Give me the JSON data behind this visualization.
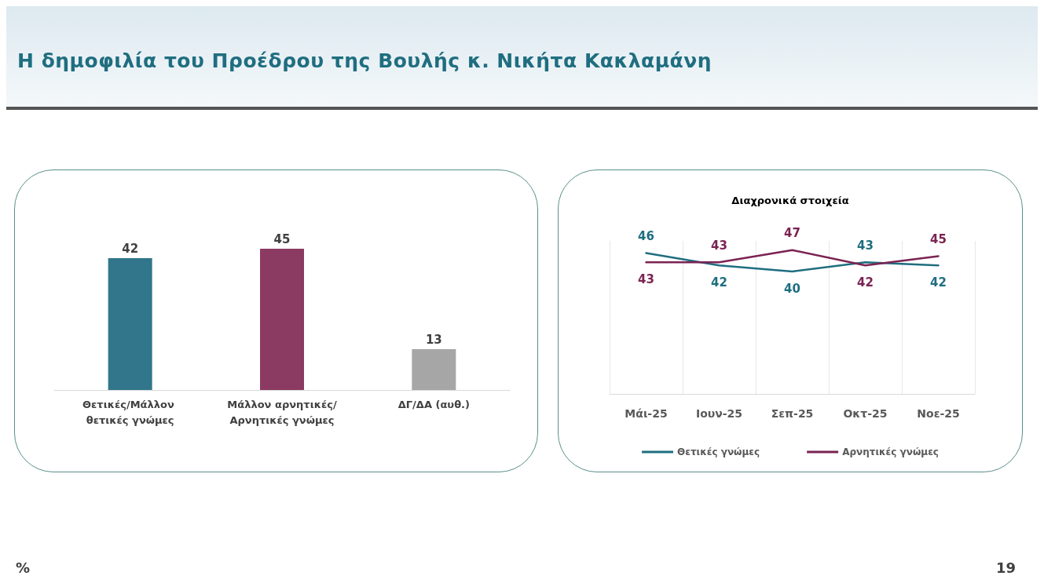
{
  "chart_data": [
    {
      "type": "bar",
      "title": "Η δημοφιλία του Προέδρου της Βουλής κ. Νικήτα Κακλαμάνη",
      "categories": [
        "Θετικές/Μάλλον θετικές γνώμες",
        "Μάλλον αρνητικές/Αρνητικές γνώμες",
        "ΔΓ/ΔΑ (αυθ.)"
      ],
      "values": [
        42,
        45,
        13
      ],
      "colors": [
        "#31768a",
        "#8b3a62",
        "#a6a6a6"
      ],
      "data_labels": true,
      "grid": false,
      "legend": false,
      "tick_labels": "x",
      "annotations": [
        "%",
        "19"
      ]
    },
    {
      "type": "line",
      "title": "Διαχρονικά στοιχεία",
      "categories": [
        "Μάι-25",
        "Ιουν-25",
        "Σεπ-25",
        "Οκτ-25",
        "Νοε-25"
      ],
      "series": [
        {
          "name": "Θετικές γνώμες",
          "color": "#1f6e80",
          "values": [
            46,
            42,
            40,
            43,
            42
          ]
        },
        {
          "name": "Αρνητικές γνώμες",
          "color": "#7b2352",
          "values": [
            43,
            43,
            47,
            42,
            45
          ]
        }
      ],
      "data_labels": true,
      "grid": "x",
      "legend": "bottom",
      "marker": "none",
      "line_style": "solid",
      "tick_labels": "x"
    }
  ]
}
